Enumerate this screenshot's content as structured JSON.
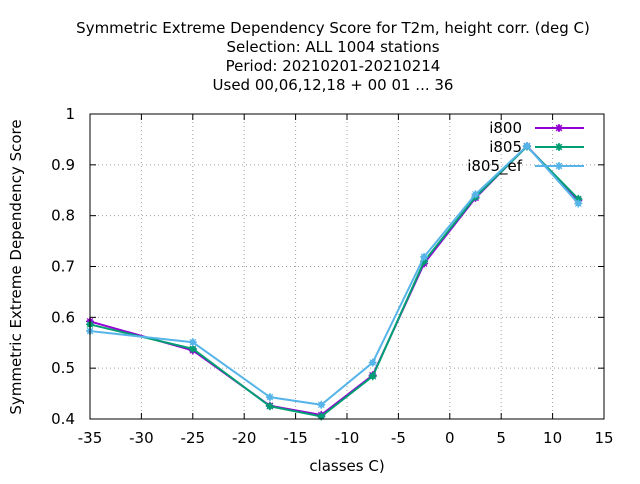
{
  "chart_data": {
    "type": "line",
    "title_lines": [
      "Symmetric Extreme Dependency Score  for T2m, height corr. (deg C)",
      "Selection: ALL   1004 stations",
      "Period: 20210201-20210214",
      "Used  00,06,12,18 + 00 01 ... 36"
    ],
    "xlabel": "classes C)",
    "ylabel": "Symmetric Extreme Dependency Score",
    "xlim": [
      -35,
      15
    ],
    "ylim": [
      0.4,
      1.0
    ],
    "xticks": [
      -35,
      -30,
      -25,
      -20,
      -15,
      -10,
      -5,
      0,
      5,
      10,
      15
    ],
    "yticks": [
      0.4,
      0.5,
      0.6,
      0.7,
      0.8,
      0.9,
      1
    ],
    "grid": true,
    "legend_position": "top-right",
    "series": [
      {
        "name": "i800",
        "color": "#9400d3",
        "x": [
          -35,
          -25,
          -17.5,
          -12.5,
          -7.5,
          -2.5,
          2.5,
          7.5,
          12.5
        ],
        "y": [
          0.592,
          0.535,
          0.426,
          0.408,
          0.486,
          0.706,
          0.835,
          0.937,
          0.83
        ]
      },
      {
        "name": "i805",
        "color": "#009e73",
        "x": [
          -35,
          -25,
          -17.5,
          -12.5,
          -7.5,
          -2.5,
          2.5,
          7.5,
          12.5
        ],
        "y": [
          0.586,
          0.538,
          0.425,
          0.405,
          0.484,
          0.71,
          0.837,
          0.936,
          0.833
        ]
      },
      {
        "name": "i805_ef",
        "color": "#56b4e9",
        "x": [
          -35,
          -25,
          -17.5,
          -12.5,
          -7.5,
          -2.5,
          2.5,
          7.5,
          12.5
        ],
        "y": [
          0.573,
          0.551,
          0.443,
          0.428,
          0.511,
          0.719,
          0.842,
          0.937,
          0.824
        ]
      }
    ]
  }
}
